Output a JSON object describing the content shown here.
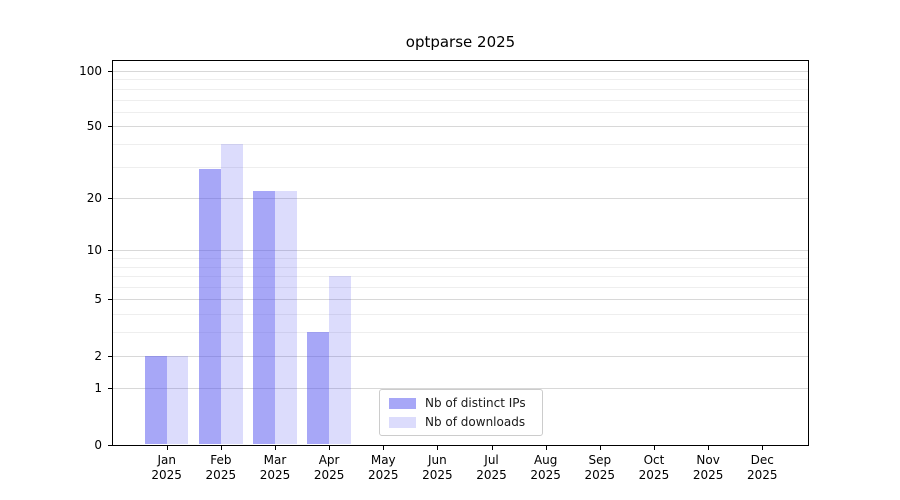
{
  "chart_data": {
    "type": "bar",
    "title": "optparse 2025",
    "categories": [
      "Jan",
      "Feb",
      "Mar",
      "Apr",
      "May",
      "Jun",
      "Jul",
      "Aug",
      "Sep",
      "Oct",
      "Nov",
      "Dec"
    ],
    "x_sublabel": "2025",
    "series": [
      {
        "name": "Nb of distinct IPs",
        "color": "rgba(80,80,240,0.5)",
        "values": [
          2,
          29,
          22,
          3,
          0,
          0,
          0,
          0,
          0,
          0,
          0,
          0
        ]
      },
      {
        "name": "Nb of downloads",
        "color": "rgba(80,80,240,0.2)",
        "values": [
          2,
          40,
          22,
          7,
          0,
          0,
          0,
          0,
          0,
          0,
          0,
          0
        ]
      }
    ],
    "y_axis": {
      "scale": "log10(value+1)",
      "tick_labels": [
        "0",
        "1",
        "2",
        "5",
        "10",
        "20",
        "50",
        "100"
      ],
      "major_ticks": [
        0,
        1,
        2,
        5,
        10,
        20,
        50,
        100
      ],
      "minor_gridlines": [
        3,
        4,
        6,
        7,
        8,
        9,
        30,
        40,
        60,
        70,
        80,
        90
      ],
      "range_max": 115
    },
    "grid": "on",
    "legend_position": "lower-center-inside",
    "colors": {
      "bar_dark_on_white": "#aaaafa",
      "bar_light_on_white": "#ddddfa",
      "major_grid": "#d8d8d8",
      "minor_grid": "#eeeeee",
      "spine": "#000000",
      "legend_border": "#cccccc",
      "text": "#000000"
    }
  }
}
